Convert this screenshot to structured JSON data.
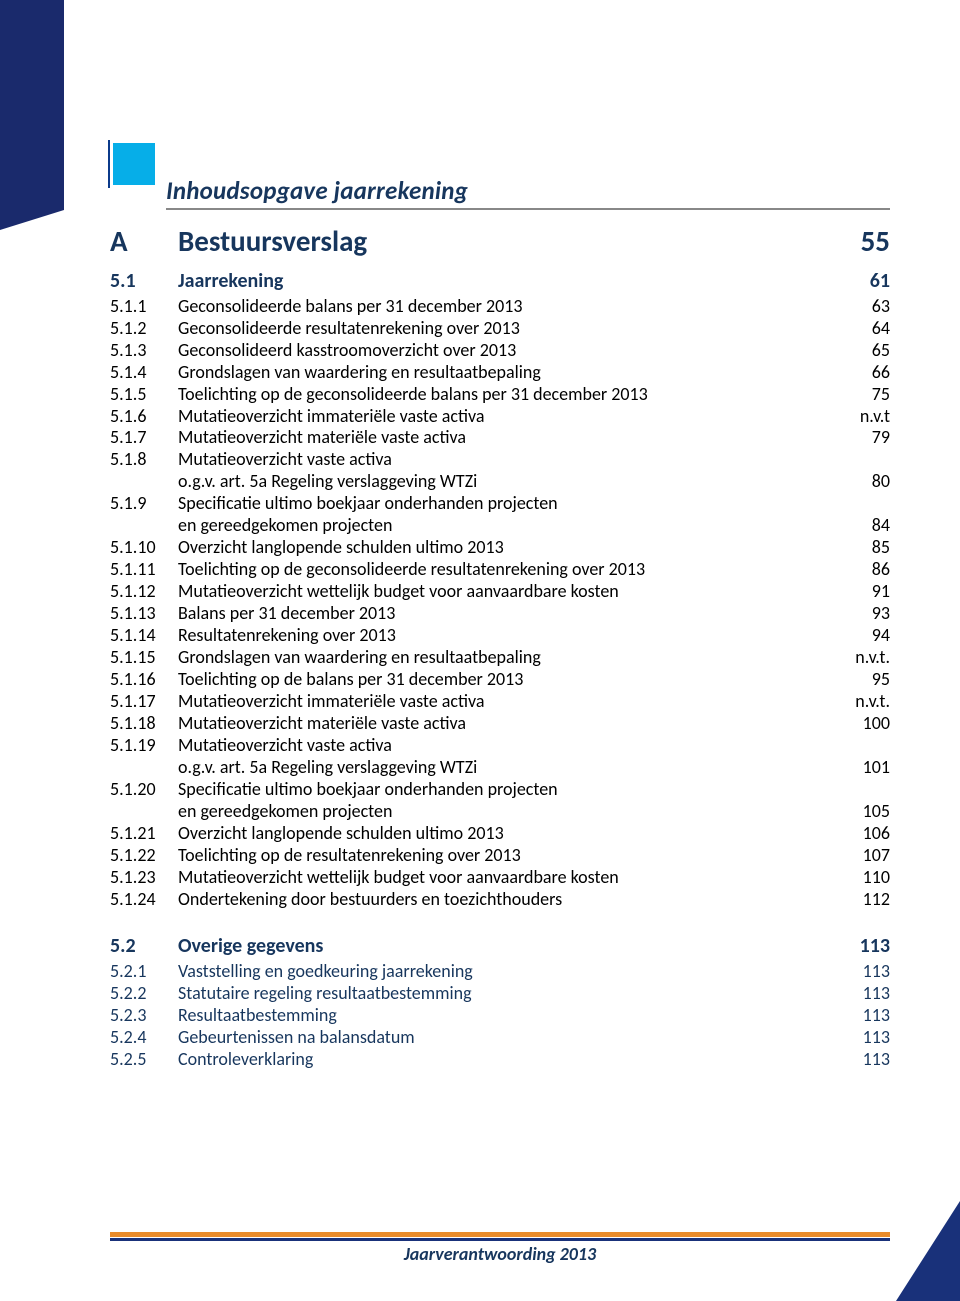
{
  "colors": {
    "heading_blue": "#17365d",
    "cyan": "#06aee8",
    "dark_blue": "#19317a",
    "orange": "#e98b2a",
    "text": "#000000",
    "rule_gray": "#888888",
    "background": "#ffffff"
  },
  "title": "Inhoudsopgave jaarrekening",
  "footer": "Jaarverantwoording 2013",
  "sections": {
    "A": {
      "num": "A",
      "label": "Bestuursverslag",
      "page": "55"
    },
    "s51": {
      "num": "5.1",
      "label": "Jaarrekening",
      "page": "61"
    },
    "s52": {
      "num": "5.2",
      "label": "Overige gegevens",
      "page": "113"
    }
  },
  "toc51": [
    {
      "num": "5.1.1",
      "label": "Geconsolideerde balans per 31 december 2013",
      "page": "63"
    },
    {
      "num": "5.1.2",
      "label": "Geconsolideerde resultatenrekening over 2013",
      "page": "64"
    },
    {
      "num": "5.1.3",
      "label": "Geconsolideerd kasstroomoverzicht over 2013",
      "page": "65"
    },
    {
      "num": "5.1.4",
      "label": "Grondslagen van waardering en resultaatbepaling",
      "page": "66"
    },
    {
      "num": "5.1.5",
      "label": "Toelichting op de geconsolideerde balans per 31 december 2013",
      "page": "75"
    },
    {
      "num": "5.1.6",
      "label": "Mutatieoverzicht immateriële vaste activa",
      "page": "n.v.t"
    },
    {
      "num": "5.1.7",
      "label": "Mutatieoverzicht materiële vaste activa",
      "page": "79"
    },
    {
      "num": "5.1.8",
      "label": "Mutatieoverzicht vaste activa",
      "page": ""
    },
    {
      "num": "",
      "label": "o.g.v. art. 5a Regeling verslaggeving WTZi",
      "page": "80",
      "cont": true
    },
    {
      "num": "5.1.9",
      "label": "Specificatie ultimo boekjaar onderhanden projecten",
      "page": ""
    },
    {
      "num": "",
      "label": "en gereedgekomen projecten",
      "page": "84",
      "cont": true
    },
    {
      "num": "5.1.10",
      "label": "Overzicht langlopende schulden ultimo 2013",
      "page": "85"
    },
    {
      "num": "5.1.11",
      "label": "Toelichting op de geconsolideerde resultatenrekening over 2013",
      "page": "86"
    },
    {
      "num": "5.1.12",
      "label": "Mutatieoverzicht wettelijk budget voor aanvaardbare kosten",
      "page": "91"
    },
    {
      "num": "5.1.13",
      "label": "Balans per 31 december 2013",
      "page": "93"
    },
    {
      "num": "5.1.14",
      "label": "Resultatenrekening over 2013",
      "page": "94"
    },
    {
      "num": "5.1.15",
      "label": "Grondslagen van waardering en resultaatbepaling",
      "page": "n.v.t."
    },
    {
      "num": "5.1.16",
      "label": "Toelichting op de balans per 31 december 2013",
      "page": "95"
    },
    {
      "num": "5.1.17",
      "label": "Mutatieoverzicht immateriële vaste activa",
      "page": "n.v.t."
    },
    {
      "num": "5.1.18",
      "label": "Mutatieoverzicht materiële vaste activa",
      "page": "100"
    },
    {
      "num": "5.1.19",
      "label": "Mutatieoverzicht vaste activa",
      "page": ""
    },
    {
      "num": "",
      "label": "o.g.v. art. 5a Regeling verslaggeving WTZi",
      "page": "101",
      "cont": true
    },
    {
      "num": "5.1.20",
      "label": "Specificatie ultimo boekjaar onderhanden projecten",
      "page": ""
    },
    {
      "num": "",
      "label": "en gereedgekomen projecten",
      "page": "105",
      "cont": true
    },
    {
      "num": "5.1.21",
      "label": "Overzicht langlopende schulden ultimo 2013",
      "page": "106"
    },
    {
      "num": "5.1.22",
      "label": "Toelichting op de resultatenrekening over 2013",
      "page": "107"
    },
    {
      "num": "5.1.23",
      "label": "Mutatieoverzicht wettelijk budget voor aanvaardbare kosten",
      "page": "110"
    },
    {
      "num": "5.1.24",
      "label": "Ondertekening door bestuurders en toezichthouders",
      "page": "112"
    }
  ],
  "toc52": [
    {
      "num": "5.2.1",
      "label": "Vaststelling en goedkeuring jaarrekening",
      "page": "113"
    },
    {
      "num": "5.2.2",
      "label": "Statutaire regeling resultaatbestemming",
      "page": "113"
    },
    {
      "num": "5.2.3",
      "label": "Resultaatbestemming",
      "page": "113"
    },
    {
      "num": "5.2.4",
      "label": "Gebeurtenissen na balansdatum",
      "page": "113"
    },
    {
      "num": "5.2.5",
      "label": "Controleverklaring",
      "page": "113"
    }
  ]
}
